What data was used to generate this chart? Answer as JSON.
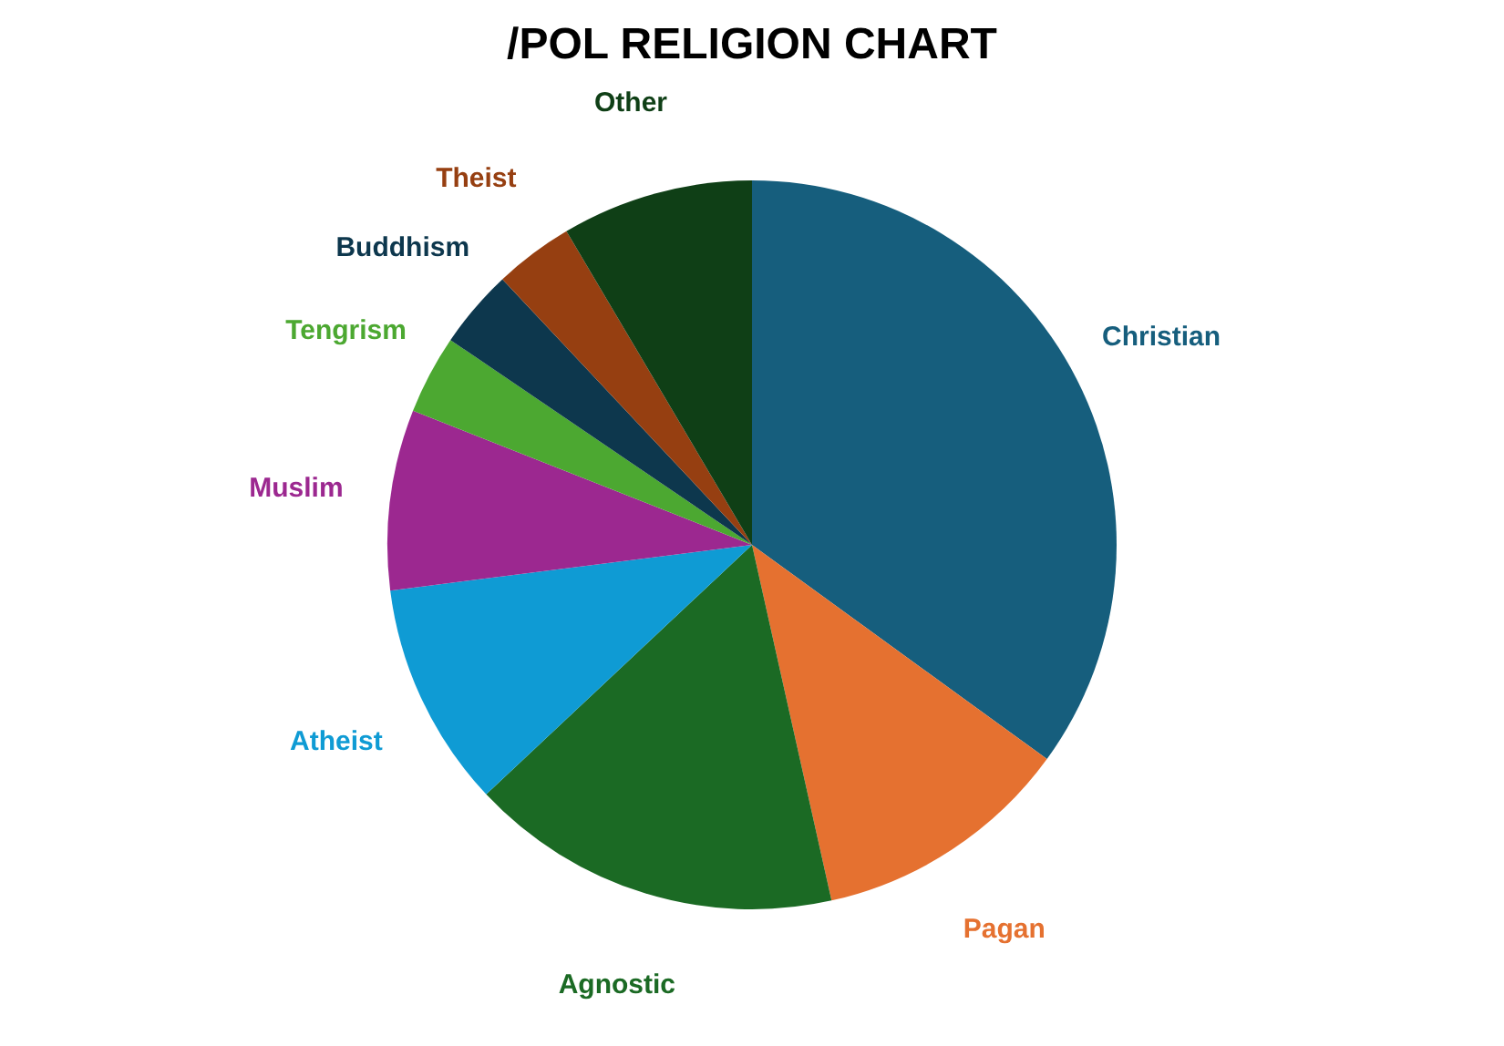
{
  "chart_data": {
    "type": "pie",
    "title": "/POL RELIGION CHART",
    "categories": [
      "Christian",
      "Pagan",
      "Agnostic",
      "Atheist",
      "Muslim",
      "Tengrism",
      "Buddhism",
      "Theist",
      "Other"
    ],
    "values": [
      35,
      11.5,
      16.5,
      10,
      8,
      3.5,
      3.5,
      3.5,
      8.5
    ],
    "colors": [
      "#165e7d",
      "#e57130",
      "#1b6a24",
      "#0f9bd4",
      "#9c2890",
      "#4ca831",
      "#0d374d",
      "#963f11",
      "#0f3f16"
    ]
  }
}
